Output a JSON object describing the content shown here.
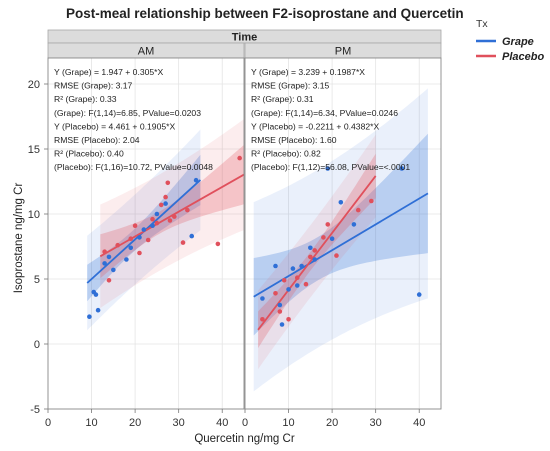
{
  "chart_data": {
    "type": "scatter",
    "title": "Post-meal relationship between F2-isoprostane and Quercetin",
    "facet_header": "Time",
    "facets": [
      "AM",
      "PM"
    ],
    "xlabel": "Quercetin ng/mg Cr",
    "ylabel": "Isoprostane ng/mg Cr",
    "xlim": [
      0,
      45
    ],
    "ylim": [
      -5,
      22
    ],
    "xticks": [
      0,
      10,
      20,
      30,
      40
    ],
    "yticks": [
      -5,
      0,
      5,
      10,
      15,
      20
    ],
    "grid": true,
    "legend": {
      "title": "Tx",
      "position": "top-right",
      "entries": [
        {
          "label": "Grape",
          "color": "#2f6fd6"
        },
        {
          "label": "Placebo",
          "color": "#e0505c"
        }
      ]
    },
    "panels": [
      {
        "facet": "AM",
        "annotations": [
          "Y (Grape) = 1.947 + 0.305*X",
          "RMSE (Grape): 3.17",
          "R² (Grape): 0.33",
          "(Grape): F(1,14)=6.85, PValue=0.0203",
          "Y (Placebo) = 4.461 + 0.1905*X",
          "RMSE (Placebo): 2.04",
          "R² (Placebo): 0.40",
          "(Placebo): F(1,16)=10.72, PValue=0.0048"
        ],
        "series": [
          {
            "name": "Grape",
            "intercept": 1.947,
            "slope": 0.305,
            "x_range": [
              9,
              35
            ],
            "points": [
              [
                9.5,
                2.1
              ],
              [
                10.5,
                4.0
              ],
              [
                11,
                3.8
              ],
              [
                11.5,
                2.6
              ],
              [
                13,
                6.2
              ],
              [
                14,
                6.7
              ],
              [
                15,
                5.7
              ],
              [
                18,
                6.5
              ],
              [
                19,
                7.4
              ],
              [
                21,
                8.2
              ],
              [
                22,
                8.8
              ],
              [
                24,
                9.1
              ],
              [
                25,
                10.0
              ],
              [
                27,
                10.8
              ],
              [
                33,
                8.3
              ],
              [
                34,
                12.6
              ]
            ]
          },
          {
            "name": "Placebo",
            "intercept": 4.461,
            "slope": 0.1905,
            "x_range": [
              12,
              46
            ],
            "points": [
              [
                13,
                7.1
              ],
              [
                14,
                4.9
              ],
              [
                16,
                7.6
              ],
              [
                19,
                8.1
              ],
              [
                20,
                9.1
              ],
              [
                21,
                7.0
              ],
              [
                23,
                8.0
              ],
              [
                24,
                9.6
              ],
              [
                25,
                9.3
              ],
              [
                26,
                10.7
              ],
              [
                27,
                11.3
              ],
              [
                27.5,
                12.4
              ],
              [
                28,
                9.5
              ],
              [
                29,
                9.8
              ],
              [
                31,
                7.8
              ],
              [
                32,
                10.3
              ],
              [
                39,
                7.7
              ],
              [
                44,
                14.3
              ]
            ]
          }
        ]
      },
      {
        "facet": "PM",
        "annotations": [
          "Y (Grape) = 3.239 + 0.1987*X",
          "RMSE (Grape): 3.15",
          "R² (Grape): 0.31",
          "(Grape): F(1,14)=6.34, PValue=0.0246",
          "Y (Placebo) = -0.2211 + 0.4382*X",
          "RMSE (Placebo): 1.60",
          "R² (Placebo): 0.82",
          "(Placebo): F(1,12)=56.08, PValue=<.0001"
        ],
        "series": [
          {
            "name": "Grape",
            "intercept": 3.239,
            "slope": 0.1987,
            "x_range": [
              2,
              42
            ],
            "points": [
              [
                4,
                3.5
              ],
              [
                7,
                6.0
              ],
              [
                8,
                3.0
              ],
              [
                8.5,
                1.5
              ],
              [
                10,
                4.2
              ],
              [
                11,
                5.8
              ],
              [
                12,
                4.5
              ],
              [
                13,
                6.0
              ],
              [
                15,
                7.4
              ],
              [
                16,
                6.5
              ],
              [
                19,
                13.5
              ],
              [
                20,
                8.1
              ],
              [
                22,
                10.9
              ],
              [
                25,
                9.2
              ],
              [
                36,
                13.5
              ],
              [
                40,
                3.8
              ]
            ]
          },
          {
            "name": "Placebo",
            "intercept": -0.2211,
            "slope": 0.4382,
            "x_range": [
              3,
              30
            ],
            "points": [
              [
                4,
                1.9
              ],
              [
                7,
                3.9
              ],
              [
                8,
                2.5
              ],
              [
                9,
                4.9
              ],
              [
                10,
                1.9
              ],
              [
                12,
                5.1
              ],
              [
                14,
                4.6
              ],
              [
                15,
                6.7
              ],
              [
                16,
                7.2
              ],
              [
                18,
                8.2
              ],
              [
                19,
                9.2
              ],
              [
                21,
                6.8
              ],
              [
                26,
                10.3
              ],
              [
                29,
                11.0
              ]
            ]
          }
        ]
      }
    ]
  }
}
